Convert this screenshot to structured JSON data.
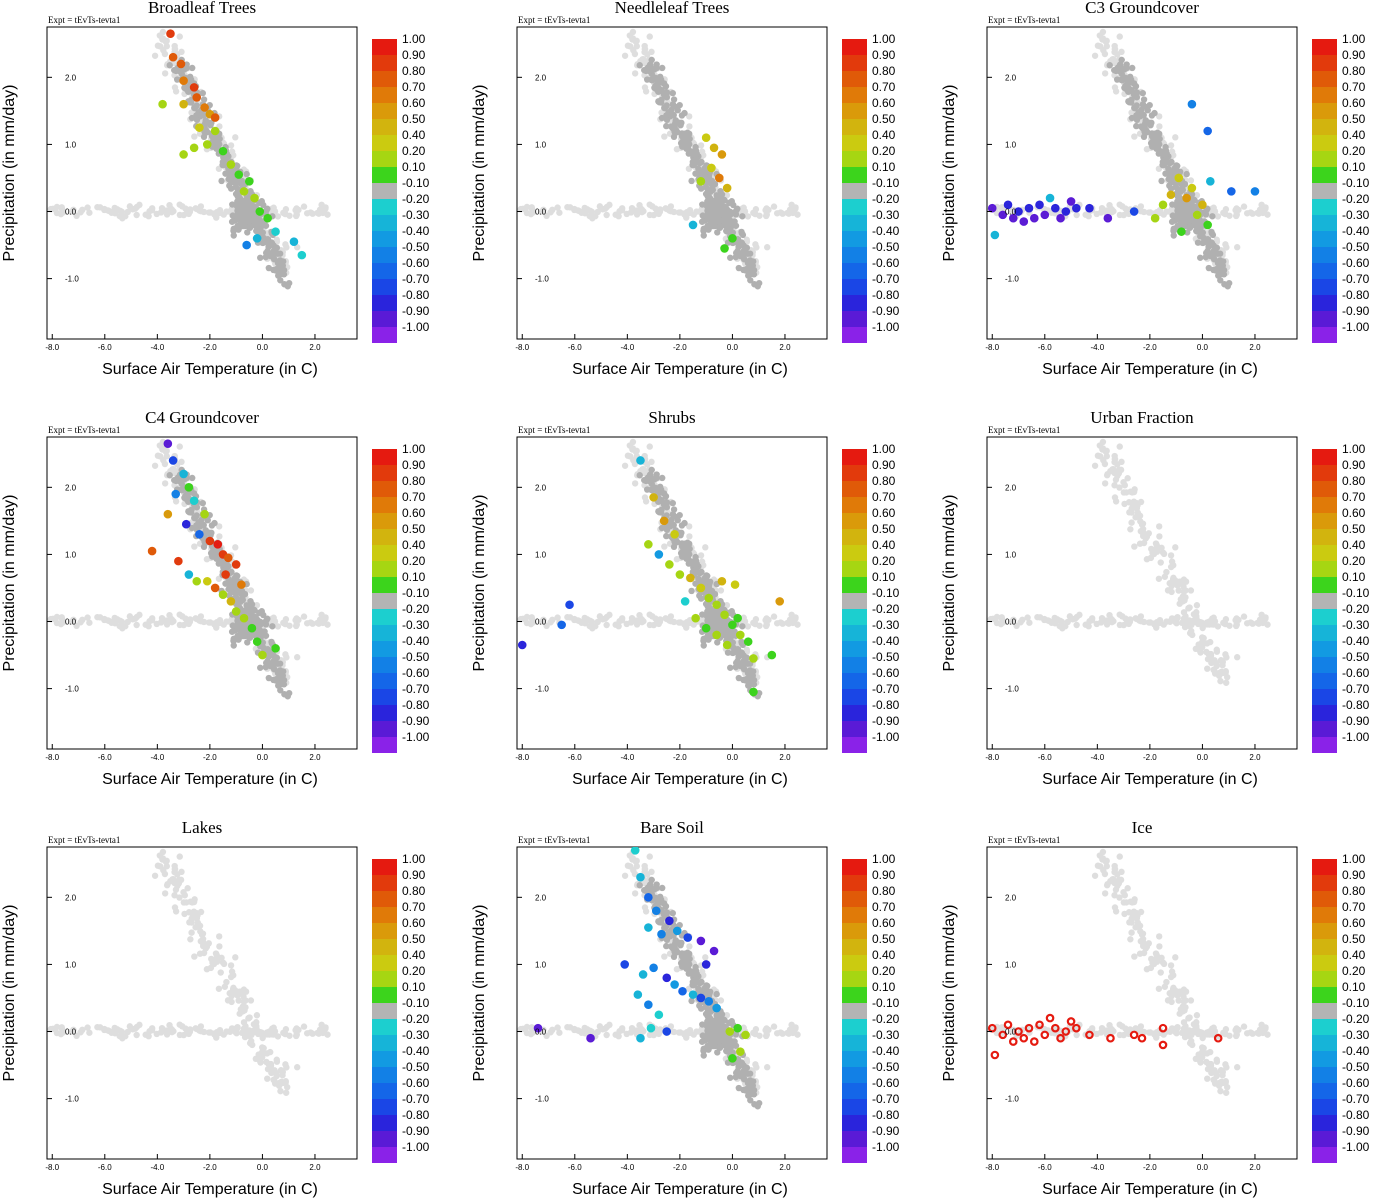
{
  "figure": {
    "experiment_label": "Expt = tEvTs-tevta1",
    "x_label": "Surface Air Temperature (in C)",
    "y_label": "Precipitation (in mm/day)",
    "x_ticks": [
      "-8.0",
      "-6.0",
      "-4.0",
      "-2.0",
      "0.0",
      "2.0"
    ],
    "x_tick_values": [
      -8,
      -6,
      -4,
      -2,
      0,
      2
    ],
    "y_ticks": [
      "2.0",
      "1.0",
      "0.0",
      "-1.0"
    ],
    "y_tick_values": [
      2,
      1,
      0,
      -1
    ],
    "xlim": [
      -8.2,
      3.6
    ],
    "ylim": [
      -1.9,
      2.75
    ],
    "colorbar_labels": [
      "1.00",
      "0.90",
      "0.80",
      "0.70",
      "0.60",
      "0.50",
      "0.40",
      "0.20",
      "0.10",
      "-0.10",
      "-0.20",
      "-0.30",
      "-0.40",
      "-0.50",
      "-0.60",
      "-0.70",
      "-0.80",
      "-0.90",
      "-1.00"
    ],
    "colorbar_colors": [
      "#e51a10",
      "#e23a0c",
      "#e05a08",
      "#e07a08",
      "#da9a0a",
      "#d2b40e",
      "#cbcb10",
      "#a6d612",
      "#3cd41c",
      "#b4b4b4",
      "#1ccfcf",
      "#16b4d8",
      "#129ae2",
      "#1280e6",
      "#1466e8",
      "#1a46e6",
      "#2a24dc",
      "#5a1ad6",
      "#8a22e8"
    ]
  },
  "chart_data": [
    {
      "type": "scatter",
      "title": "Broadleaf Trees",
      "pattern": "diagonal",
      "highlighted_points": [
        [
          -3.5,
          2.65
        ],
        [
          -3.4,
          2.3
        ],
        [
          -3.1,
          2.2
        ],
        [
          -3.0,
          1.95
        ],
        [
          -2.6,
          1.85
        ],
        [
          -2.5,
          1.7
        ],
        [
          -2.2,
          1.55
        ],
        [
          -2.0,
          1.45
        ],
        [
          -1.8,
          1.4
        ],
        [
          -3.0,
          1.6
        ],
        [
          -3.8,
          1.6
        ],
        [
          -2.4,
          1.25
        ],
        [
          -2.1,
          1.0
        ],
        [
          -1.8,
          1.2
        ],
        [
          -2.6,
          0.95
        ],
        [
          -3.0,
          0.85
        ],
        [
          -1.5,
          0.9
        ],
        [
          -1.2,
          0.7
        ],
        [
          -0.9,
          0.55
        ],
        [
          -0.7,
          0.3
        ],
        [
          -0.5,
          0.45
        ],
        [
          -0.3,
          0.2
        ],
        [
          -0.1,
          0.0
        ],
        [
          0.2,
          -0.1
        ],
        [
          -0.2,
          -0.4
        ],
        [
          0.5,
          -0.3
        ],
        [
          1.2,
          -0.45
        ],
        [
          1.5,
          -0.65
        ],
        [
          -0.6,
          -0.5
        ]
      ],
      "highlighted_values": [
        0.9,
        0.8,
        0.8,
        0.7,
        0.9,
        0.8,
        0.7,
        0.6,
        0.8,
        0.5,
        0.2,
        0.4,
        0.3,
        0.2,
        0.3,
        0.2,
        0.1,
        0.2,
        0.1,
        0.2,
        0.1,
        0.2,
        0.1,
        0.1,
        -0.3,
        -0.2,
        -0.3,
        -0.2,
        -0.5
      ]
    },
    {
      "type": "scatter",
      "title": "Needleleaf Trees",
      "pattern": "diagonal",
      "highlighted_points": [
        [
          -1.0,
          1.1
        ],
        [
          -0.7,
          0.95
        ],
        [
          -0.4,
          0.85
        ],
        [
          -0.8,
          0.65
        ],
        [
          -0.5,
          0.5
        ],
        [
          -1.2,
          0.45
        ],
        [
          -0.2,
          0.35
        ],
        [
          0.0,
          -0.4
        ],
        [
          -0.3,
          -0.55
        ],
        [
          -1.5,
          -0.2
        ]
      ],
      "highlighted_values": [
        0.4,
        0.5,
        0.6,
        0.4,
        0.7,
        0.3,
        0.5,
        0.1,
        0.1,
        -0.3
      ]
    },
    {
      "type": "scatter",
      "title": "C3 Groundcover",
      "pattern": "diagonal",
      "highlighted_points": [
        [
          -8.0,
          0.05
        ],
        [
          -7.9,
          -0.35
        ],
        [
          -7.6,
          -0.05
        ],
        [
          -7.4,
          0.1
        ],
        [
          -7.2,
          -0.1
        ],
        [
          -7.0,
          0.0
        ],
        [
          -6.8,
          -0.15
        ],
        [
          -6.6,
          0.05
        ],
        [
          -6.4,
          -0.1
        ],
        [
          -6.2,
          0.1
        ],
        [
          -6.0,
          -0.05
        ],
        [
          -5.8,
          0.2
        ],
        [
          -5.6,
          0.05
        ],
        [
          -5.4,
          -0.1
        ],
        [
          -5.2,
          0.0
        ],
        [
          -5.0,
          0.15
        ],
        [
          -4.8,
          0.05
        ],
        [
          -4.3,
          0.05
        ],
        [
          -3.6,
          -0.1
        ],
        [
          -2.6,
          0.0
        ],
        [
          -1.5,
          0.1
        ],
        [
          -1.2,
          0.25
        ],
        [
          -0.9,
          0.5
        ],
        [
          -0.6,
          0.2
        ],
        [
          -0.4,
          0.35
        ],
        [
          -0.2,
          -0.05
        ],
        [
          0.0,
          0.1
        ],
        [
          0.2,
          -0.2
        ],
        [
          -0.8,
          -0.3
        ],
        [
          -0.4,
          1.6
        ],
        [
          0.2,
          1.2
        ],
        [
          0.3,
          0.45
        ],
        [
          1.1,
          0.3
        ],
        [
          2.0,
          0.3
        ],
        [
          -1.8,
          -0.1
        ]
      ],
      "highlighted_values": [
        -0.9,
        -0.3,
        -0.9,
        -0.8,
        -0.9,
        -0.8,
        -0.9,
        -0.8,
        -0.9,
        -0.8,
        -0.9,
        -0.3,
        -0.8,
        -0.9,
        -0.8,
        -0.9,
        -0.8,
        -0.8,
        -0.9,
        -0.7,
        0.2,
        0.5,
        0.4,
        0.6,
        0.4,
        0.3,
        0.5,
        0.1,
        0.1,
        -0.5,
        -0.6,
        -0.3,
        -0.6,
        -0.5,
        0.2
      ]
    },
    {
      "type": "scatter",
      "title": "C4 Groundcover",
      "pattern": "diagonal",
      "highlighted_points": [
        [
          -3.6,
          2.65
        ],
        [
          -3.4,
          2.4
        ],
        [
          -3.0,
          2.2
        ],
        [
          -2.8,
          2.0
        ],
        [
          -3.3,
          1.9
        ],
        [
          -2.6,
          1.8
        ],
        [
          -2.2,
          1.6
        ],
        [
          -3.6,
          1.6
        ],
        [
          -2.9,
          1.45
        ],
        [
          -2.4,
          1.3
        ],
        [
          -2.0,
          1.2
        ],
        [
          -1.7,
          1.15
        ],
        [
          -1.5,
          1.0
        ],
        [
          -1.3,
          0.95
        ],
        [
          -1.0,
          0.85
        ],
        [
          -4.2,
          1.05
        ],
        [
          -3.2,
          0.9
        ],
        [
          -2.8,
          0.7
        ],
        [
          -2.5,
          0.6
        ],
        [
          -2.1,
          0.6
        ],
        [
          -1.8,
          0.5
        ],
        [
          -1.5,
          0.4
        ],
        [
          -1.2,
          0.3
        ],
        [
          -1.0,
          0.15
        ],
        [
          -0.7,
          0.05
        ],
        [
          -0.4,
          -0.1
        ],
        [
          -0.2,
          -0.3
        ],
        [
          0.0,
          -0.5
        ],
        [
          0.5,
          -0.4
        ],
        [
          -1.4,
          0.7
        ],
        [
          -0.8,
          0.55
        ]
      ],
      "highlighted_values": [
        -0.9,
        -0.7,
        -0.3,
        0.1,
        -0.5,
        -0.2,
        0.2,
        0.6,
        -0.8,
        -0.6,
        0.9,
        1.0,
        0.9,
        0.8,
        0.9,
        0.8,
        0.9,
        -0.3,
        0.2,
        0.4,
        0.8,
        0.3,
        0.5,
        0.2,
        0.3,
        0.1,
        0.1,
        0.2,
        0.1,
        0.9,
        0.7
      ]
    },
    {
      "type": "scatter",
      "title": "Shrubs",
      "pattern": "diagonal",
      "highlighted_points": [
        [
          -8.0,
          -0.35
        ],
        [
          -6.5,
          -0.05
        ],
        [
          -6.2,
          0.25
        ],
        [
          -3.5,
          2.4
        ],
        [
          -3.0,
          1.85
        ],
        [
          -2.6,
          1.5
        ],
        [
          -2.2,
          1.3
        ],
        [
          -3.2,
          1.15
        ],
        [
          -2.8,
          1.0
        ],
        [
          -2.4,
          0.85
        ],
        [
          -2.0,
          0.7
        ],
        [
          -1.6,
          0.65
        ],
        [
          -1.2,
          0.5
        ],
        [
          -0.9,
          0.35
        ],
        [
          -0.6,
          0.25
        ],
        [
          -0.3,
          0.1
        ],
        [
          0.0,
          -0.05
        ],
        [
          0.3,
          -0.2
        ],
        [
          0.6,
          -0.3
        ],
        [
          -1.4,
          0.05
        ],
        [
          -1.0,
          -0.1
        ],
        [
          -0.6,
          -0.2
        ],
        [
          -0.2,
          -0.35
        ],
        [
          0.2,
          0.05
        ],
        [
          0.8,
          -0.55
        ],
        [
          1.5,
          -0.5
        ],
        [
          0.8,
          -1.05
        ],
        [
          1.8,
          0.3
        ],
        [
          -1.8,
          0.3
        ],
        [
          -0.4,
          0.6
        ],
        [
          0.1,
          0.55
        ]
      ],
      "highlighted_values": [
        -0.8,
        -0.6,
        -0.7,
        -0.3,
        0.5,
        0.6,
        0.4,
        0.2,
        -0.4,
        0.3,
        0.2,
        0.5,
        0.4,
        0.2,
        0.3,
        0.2,
        0.1,
        0.2,
        0.1,
        0.2,
        0.1,
        0.3,
        0.2,
        0.1,
        0.2,
        0.1,
        0.1,
        0.6,
        -0.2,
        0.5,
        0.4
      ]
    },
    {
      "type": "scatter",
      "title": "Urban Fraction",
      "pattern": "diagonal",
      "highlighted_points": [],
      "highlighted_values": []
    },
    {
      "type": "scatter",
      "title": "Lakes",
      "pattern": "diagonal",
      "highlighted_points": [],
      "highlighted_values": []
    },
    {
      "type": "scatter",
      "title": "Bare Soil",
      "pattern": "diagonal",
      "highlighted_points": [
        [
          -3.7,
          2.7
        ],
        [
          -3.5,
          2.3
        ],
        [
          -3.2,
          2.0
        ],
        [
          -2.9,
          1.8
        ],
        [
          -2.4,
          1.65
        ],
        [
          -2.1,
          1.5
        ],
        [
          -1.7,
          1.4
        ],
        [
          -1.2,
          1.35
        ],
        [
          -3.2,
          1.55
        ],
        [
          -2.7,
          1.45
        ],
        [
          -4.1,
          1.0
        ],
        [
          -3.4,
          0.85
        ],
        [
          -3.0,
          0.95
        ],
        [
          -2.5,
          0.8
        ],
        [
          -2.2,
          0.7
        ],
        [
          -1.9,
          0.6
        ],
        [
          -1.5,
          0.55
        ],
        [
          -1.2,
          0.5
        ],
        [
          -0.9,
          0.45
        ],
        [
          -0.6,
          0.35
        ],
        [
          -3.6,
          0.55
        ],
        [
          -3.2,
          0.4
        ],
        [
          -2.8,
          0.25
        ],
        [
          -7.4,
          0.05
        ],
        [
          -5.4,
          -0.1
        ],
        [
          -3.5,
          -0.1
        ],
        [
          -3.1,
          0.05
        ],
        [
          -2.5,
          0.0
        ],
        [
          -0.1,
          0.0
        ],
        [
          0.2,
          0.05
        ],
        [
          0.5,
          -0.05
        ],
        [
          0.3,
          -0.3
        ],
        [
          0.0,
          -0.4
        ],
        [
          -0.7,
          1.2
        ],
        [
          -1.0,
          1.0
        ]
      ],
      "highlighted_values": [
        -0.2,
        -0.3,
        -0.6,
        -0.5,
        -0.8,
        -0.4,
        -0.7,
        -0.9,
        -0.3,
        -0.5,
        -0.7,
        -0.3,
        -0.5,
        -0.8,
        -0.4,
        -0.6,
        -0.3,
        -0.7,
        -0.5,
        -0.4,
        -0.3,
        -0.5,
        -0.2,
        -0.9,
        -0.9,
        -0.3,
        -0.2,
        -0.7,
        0.2,
        0.1,
        0.3,
        0.2,
        0.1,
        -0.9,
        -0.8
      ]
    },
    {
      "type": "scatter",
      "title": "Ice",
      "pattern": "diagonal",
      "highlighted_points": [
        [
          -8.0,
          0.05
        ],
        [
          -7.9,
          -0.35
        ],
        [
          -7.6,
          -0.05
        ],
        [
          -7.4,
          0.1
        ],
        [
          -7.2,
          -0.15
        ],
        [
          -7.0,
          0.0
        ],
        [
          -6.8,
          -0.1
        ],
        [
          -6.6,
          0.05
        ],
        [
          -6.4,
          -0.15
        ],
        [
          -6.2,
          0.1
        ],
        [
          -6.0,
          -0.05
        ],
        [
          -5.8,
          0.2
        ],
        [
          -5.6,
          0.05
        ],
        [
          -5.4,
          -0.1
        ],
        [
          -5.2,
          0.0
        ],
        [
          -5.0,
          0.15
        ],
        [
          -4.8,
          0.05
        ],
        [
          -4.3,
          -0.05
        ],
        [
          -3.5,
          -0.1
        ],
        [
          -2.6,
          -0.05
        ],
        [
          -2.3,
          -0.1
        ],
        [
          -1.5,
          0.05
        ],
        [
          -1.5,
          -0.2
        ],
        [
          0.6,
          -0.1
        ]
      ],
      "highlighted_values": [
        1.0,
        1.0,
        1.0,
        1.0,
        1.0,
        1.0,
        1.0,
        1.0,
        1.0,
        1.0,
        1.0,
        1.0,
        1.0,
        1.0,
        1.0,
        1.0,
        1.0,
        1.0,
        1.0,
        1.0,
        1.0,
        1.0,
        1.0,
        1.0
      ]
    }
  ]
}
